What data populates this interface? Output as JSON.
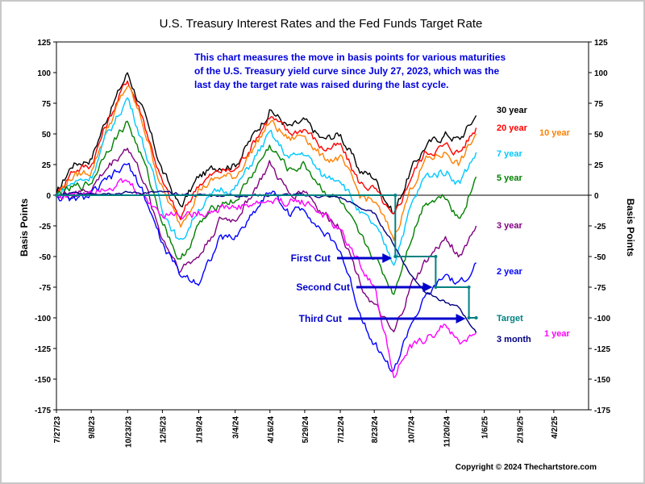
{
  "chart_data": {
    "type": "line",
    "title": "U.S. Treasury Interest Rates and the Fed Funds Target Rate",
    "ylabel": "Basis Points",
    "ylim": [
      -175,
      125
    ],
    "yticks": [
      -175,
      -150,
      -125,
      -100,
      -75,
      -50,
      -25,
      0,
      25,
      50,
      75,
      100,
      125
    ],
    "x_start": "2023-07-27",
    "x_end": "2025-05-15",
    "xticks": [
      "7/27/23",
      "9/8/23",
      "10/23/23",
      "12/5/23",
      "1/19/24",
      "3/4/24",
      "4/16/24",
      "5/29/24",
      "7/12/24",
      "8/23/24",
      "10/7/24",
      "11/20/24",
      "1/6/25",
      "2/19/25",
      "4/2/25"
    ],
    "grid": false,
    "annotation_text": "This chart measures the move in basis points for various maturities of the U.S. Treasury yield curve since July 27, 2023, which was the last day the target rate was raised during the last cycle.",
    "copyright": "Copyright © 2024 Thechartstore.com",
    "cut_labels": [
      {
        "label": "First Cut",
        "date": "2024-09-18",
        "value": -50
      },
      {
        "label": "Second Cut",
        "date": "2024-11-07",
        "value": -75
      },
      {
        "label": "Third Cut",
        "date": "2024-12-18",
        "value": -100
      }
    ],
    "series": [
      {
        "name": "30 year",
        "color": "#000000",
        "points": [
          [
            "2023-07-27",
            0
          ],
          [
            "2023-08-15",
            25
          ],
          [
            "2023-09-08",
            30
          ],
          [
            "2023-09-25",
            60
          ],
          [
            "2023-10-23",
            100
          ],
          [
            "2023-11-10",
            70
          ],
          [
            "2023-12-05",
            20
          ],
          [
            "2023-12-27",
            -10
          ],
          [
            "2024-01-19",
            15
          ],
          [
            "2024-02-15",
            25
          ],
          [
            "2024-03-04",
            25
          ],
          [
            "2024-04-16",
            70
          ],
          [
            "2024-05-10",
            55
          ],
          [
            "2024-05-29",
            60
          ],
          [
            "2024-06-20",
            45
          ],
          [
            "2024-07-12",
            50
          ],
          [
            "2024-08-05",
            20
          ],
          [
            "2024-08-23",
            15
          ],
          [
            "2024-09-16",
            -15
          ],
          [
            "2024-10-07",
            20
          ],
          [
            "2024-10-25",
            40
          ],
          [
            "2024-11-20",
            50
          ],
          [
            "2024-12-06",
            45
          ],
          [
            "2024-12-27",
            65
          ]
        ]
      },
      {
        "name": "20 year",
        "color": "#ff0000",
        "points": [
          [
            "2023-07-27",
            0
          ],
          [
            "2023-08-15",
            20
          ],
          [
            "2023-09-08",
            25
          ],
          [
            "2023-09-25",
            55
          ],
          [
            "2023-10-23",
            95
          ],
          [
            "2023-11-10",
            65
          ],
          [
            "2023-12-05",
            10
          ],
          [
            "2023-12-27",
            -20
          ],
          [
            "2024-01-19",
            10
          ],
          [
            "2024-02-15",
            20
          ],
          [
            "2024-03-04",
            20
          ],
          [
            "2024-04-16",
            65
          ],
          [
            "2024-05-10",
            50
          ],
          [
            "2024-05-29",
            55
          ],
          [
            "2024-06-20",
            38
          ],
          [
            "2024-07-12",
            40
          ],
          [
            "2024-08-05",
            10
          ],
          [
            "2024-08-23",
            5
          ],
          [
            "2024-09-16",
            -20
          ],
          [
            "2024-10-07",
            15
          ],
          [
            "2024-10-25",
            35
          ],
          [
            "2024-11-20",
            40
          ],
          [
            "2024-12-06",
            35
          ],
          [
            "2024-12-27",
            55
          ]
        ]
      },
      {
        "name": "10 year",
        "color": "#ff8000",
        "points": [
          [
            "2023-07-27",
            0
          ],
          [
            "2023-08-15",
            15
          ],
          [
            "2023-09-08",
            20
          ],
          [
            "2023-09-25",
            50
          ],
          [
            "2023-10-23",
            90
          ],
          [
            "2023-11-10",
            60
          ],
          [
            "2023-12-05",
            5
          ],
          [
            "2023-12-27",
            -25
          ],
          [
            "2024-01-19",
            5
          ],
          [
            "2024-02-15",
            15
          ],
          [
            "2024-03-04",
            15
          ],
          [
            "2024-04-16",
            60
          ],
          [
            "2024-05-10",
            45
          ],
          [
            "2024-05-29",
            50
          ],
          [
            "2024-06-20",
            30
          ],
          [
            "2024-07-12",
            30
          ],
          [
            "2024-08-05",
            0
          ],
          [
            "2024-08-23",
            -5
          ],
          [
            "2024-09-16",
            -35
          ],
          [
            "2024-10-07",
            5
          ],
          [
            "2024-10-25",
            28
          ],
          [
            "2024-11-20",
            35
          ],
          [
            "2024-12-06",
            25
          ],
          [
            "2024-12-27",
            50
          ]
        ]
      },
      {
        "name": "7 year",
        "color": "#00c8ff",
        "points": [
          [
            "2023-07-27",
            0
          ],
          [
            "2023-08-15",
            10
          ],
          [
            "2023-09-08",
            15
          ],
          [
            "2023-09-25",
            45
          ],
          [
            "2023-10-23",
            80
          ],
          [
            "2023-11-10",
            45
          ],
          [
            "2023-12-05",
            -10
          ],
          [
            "2023-12-27",
            -40
          ],
          [
            "2024-01-19",
            -10
          ],
          [
            "2024-02-15",
            5
          ],
          [
            "2024-03-04",
            5
          ],
          [
            "2024-04-16",
            50
          ],
          [
            "2024-05-10",
            30
          ],
          [
            "2024-05-29",
            35
          ],
          [
            "2024-06-20",
            15
          ],
          [
            "2024-07-12",
            15
          ],
          [
            "2024-08-05",
            -15
          ],
          [
            "2024-08-23",
            -25
          ],
          [
            "2024-09-16",
            -55
          ],
          [
            "2024-10-07",
            -10
          ],
          [
            "2024-10-25",
            15
          ],
          [
            "2024-11-20",
            20
          ],
          [
            "2024-12-06",
            10
          ],
          [
            "2024-12-27",
            35
          ]
        ]
      },
      {
        "name": "5 year",
        "color": "#008000",
        "points": [
          [
            "2023-07-27",
            0
          ],
          [
            "2023-08-15",
            5
          ],
          [
            "2023-09-08",
            10
          ],
          [
            "2023-09-25",
            35
          ],
          [
            "2023-10-23",
            60
          ],
          [
            "2023-11-10",
            30
          ],
          [
            "2023-12-05",
            -20
          ],
          [
            "2023-12-27",
            -55
          ],
          [
            "2024-01-19",
            -25
          ],
          [
            "2024-02-15",
            -5
          ],
          [
            "2024-03-04",
            -5
          ],
          [
            "2024-04-16",
            40
          ],
          [
            "2024-05-10",
            20
          ],
          [
            "2024-05-29",
            25
          ],
          [
            "2024-06-20",
            5
          ],
          [
            "2024-07-12",
            -5
          ],
          [
            "2024-08-05",
            -35
          ],
          [
            "2024-08-23",
            -50
          ],
          [
            "2024-09-16",
            -80
          ],
          [
            "2024-10-07",
            -35
          ],
          [
            "2024-10-25",
            -5
          ],
          [
            "2024-11-20",
            0
          ],
          [
            "2024-12-06",
            -20
          ],
          [
            "2024-12-27",
            15
          ]
        ]
      },
      {
        "name": "3 year",
        "color": "#800080",
        "points": [
          [
            "2023-07-27",
            0
          ],
          [
            "2023-08-15",
            0
          ],
          [
            "2023-09-08",
            5
          ],
          [
            "2023-09-25",
            20
          ],
          [
            "2023-10-23",
            40
          ],
          [
            "2023-11-10",
            15
          ],
          [
            "2023-12-05",
            -35
          ],
          [
            "2023-12-27",
            -60
          ],
          [
            "2024-01-19",
            -50
          ],
          [
            "2024-02-15",
            -20
          ],
          [
            "2024-03-04",
            -20
          ],
          [
            "2024-04-16",
            25
          ],
          [
            "2024-05-10",
            0
          ],
          [
            "2024-05-29",
            5
          ],
          [
            "2024-06-20",
            -15
          ],
          [
            "2024-07-12",
            -25
          ],
          [
            "2024-08-05",
            -70
          ],
          [
            "2024-08-23",
            -90
          ],
          [
            "2024-09-16",
            -115
          ],
          [
            "2024-10-07",
            -75
          ],
          [
            "2024-10-25",
            -55
          ],
          [
            "2024-11-20",
            -35
          ],
          [
            "2024-12-06",
            -50
          ],
          [
            "2024-12-27",
            -25
          ]
        ]
      },
      {
        "name": "2 year",
        "color": "#0000ff",
        "points": [
          [
            "2023-07-27",
            0
          ],
          [
            "2023-08-15",
            -5
          ],
          [
            "2023-09-08",
            0
          ],
          [
            "2023-09-25",
            10
          ],
          [
            "2023-10-23",
            25
          ],
          [
            "2023-11-10",
            5
          ],
          [
            "2023-12-05",
            -40
          ],
          [
            "2023-12-27",
            -65
          ],
          [
            "2024-01-19",
            -70
          ],
          [
            "2024-02-15",
            -35
          ],
          [
            "2024-03-04",
            -35
          ],
          [
            "2024-04-16",
            5
          ],
          [
            "2024-05-10",
            -15
          ],
          [
            "2024-05-29",
            -10
          ],
          [
            "2024-06-20",
            -30
          ],
          [
            "2024-07-12",
            -45
          ],
          [
            "2024-08-05",
            -95
          ],
          [
            "2024-08-23",
            -120
          ],
          [
            "2024-09-16",
            -145
          ],
          [
            "2024-10-07",
            -105
          ],
          [
            "2024-10-25",
            -85
          ],
          [
            "2024-11-20",
            -65
          ],
          [
            "2024-12-06",
            -75
          ],
          [
            "2024-12-27",
            -55
          ]
        ]
      },
      {
        "name": "1 year",
        "color": "#ff00ff",
        "points": [
          [
            "2023-07-27",
            0
          ],
          [
            "2023-08-15",
            0
          ],
          [
            "2023-09-08",
            5
          ],
          [
            "2023-09-25",
            8
          ],
          [
            "2023-10-23",
            10
          ],
          [
            "2023-11-10",
            0
          ],
          [
            "2023-12-05",
            -15
          ],
          [
            "2023-12-27",
            -15
          ],
          [
            "2024-01-19",
            -15
          ],
          [
            "2024-02-15",
            -10
          ],
          [
            "2024-03-04",
            -10
          ],
          [
            "2024-04-16",
            -5
          ],
          [
            "2024-05-10",
            -5
          ],
          [
            "2024-05-29",
            -5
          ],
          [
            "2024-06-20",
            -15
          ],
          [
            "2024-07-12",
            -30
          ],
          [
            "2024-08-05",
            -55
          ],
          [
            "2024-08-23",
            -75
          ],
          [
            "2024-09-16",
            -145
          ],
          [
            "2024-10-07",
            -125
          ],
          [
            "2024-10-25",
            -118
          ],
          [
            "2024-11-20",
            -105
          ],
          [
            "2024-12-06",
            -122
          ],
          [
            "2024-12-27",
            -112
          ]
        ]
      },
      {
        "name": "3 month",
        "color": "#000080",
        "points": [
          [
            "2023-07-27",
            0
          ],
          [
            "2023-08-15",
            1
          ],
          [
            "2023-09-08",
            2
          ],
          [
            "2023-10-23",
            2
          ],
          [
            "2023-12-05",
            2
          ],
          [
            "2024-01-19",
            0
          ],
          [
            "2024-03-04",
            0
          ],
          [
            "2024-04-16",
            0
          ],
          [
            "2024-05-29",
            0
          ],
          [
            "2024-07-12",
            -2
          ],
          [
            "2024-08-05",
            -10
          ],
          [
            "2024-08-23",
            -15
          ],
          [
            "2024-09-16",
            -40
          ],
          [
            "2024-10-07",
            -65
          ],
          [
            "2024-10-25",
            -78
          ],
          [
            "2024-11-20",
            -88
          ],
          [
            "2024-12-06",
            -92
          ],
          [
            "2024-12-27",
            -112
          ]
        ]
      },
      {
        "name": "Target",
        "color": "#008080",
        "points": [
          [
            "2023-07-27",
            0
          ],
          [
            "2024-09-18",
            0
          ],
          [
            "2024-09-18",
            -50
          ],
          [
            "2024-11-07",
            -50
          ],
          [
            "2024-11-07",
            -75
          ],
          [
            "2024-12-18",
            -75
          ],
          [
            "2024-12-18",
            -100
          ],
          [
            "2024-12-27",
            -100
          ]
        ]
      }
    ]
  }
}
